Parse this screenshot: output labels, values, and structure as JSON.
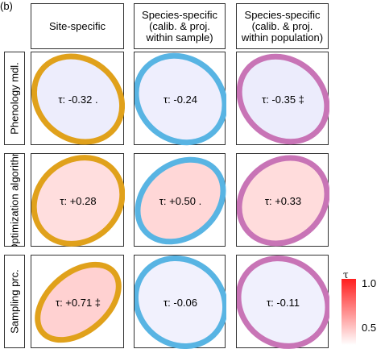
{
  "figure": {
    "corner_label": "(b)",
    "columns": [
      "Site-specific",
      "Species-specific\n(calib. & proj.\nwithin sample)",
      "Species-specific\n(calib. & proj.\nwithin population)"
    ],
    "rows": [
      "Phenology mdl.",
      "Optimization algorithm",
      "Sampling prc."
    ]
  },
  "colors": {
    "site_specific": "#e0a11b",
    "within_sample": "#58b4e3",
    "within_population": "#c874b6",
    "negative_fill": "#e2e2fb",
    "positive_fill": "#ffc8c8",
    "legend_high": "#ff1f1f",
    "legend_low": "#ffffff"
  },
  "chart_data": {
    "type": "heatmap",
    "title": "",
    "legend": {
      "title": "τ",
      "ticks": [
        "1.0",
        "0.5"
      ],
      "position": "right"
    },
    "cells": [
      {
        "row": 0,
        "col": 0,
        "tau": -0.32,
        "label": "τ: -0.32 .",
        "color": "site_specific",
        "fill": "negative_fill"
      },
      {
        "row": 0,
        "col": 1,
        "tau": -0.24,
        "label": "τ: -0.24",
        "color": "within_sample",
        "fill": "negative_fill"
      },
      {
        "row": 0,
        "col": 2,
        "tau": -0.35,
        "label": "τ: -0.35 ‡",
        "color": "within_population",
        "fill": "negative_fill"
      },
      {
        "row": 1,
        "col": 0,
        "tau": 0.28,
        "label": "τ: +0.28",
        "color": "site_specific",
        "fill": "positive_fill"
      },
      {
        "row": 1,
        "col": 1,
        "tau": 0.5,
        "label": "τ: +0.50 .",
        "color": "within_sample",
        "fill": "positive_fill"
      },
      {
        "row": 1,
        "col": 2,
        "tau": 0.33,
        "label": "τ: +0.33",
        "color": "within_population",
        "fill": "positive_fill"
      },
      {
        "row": 2,
        "col": 0,
        "tau": 0.71,
        "label": "τ: +0.71 ‡",
        "color": "site_specific",
        "fill": "positive_fill"
      },
      {
        "row": 2,
        "col": 1,
        "tau": -0.06,
        "label": "τ: -0.06",
        "color": "within_sample",
        "fill": "negative_fill"
      },
      {
        "row": 2,
        "col": 2,
        "tau": -0.11,
        "label": "τ: -0.11",
        "color": "within_population",
        "fill": "negative_fill"
      }
    ]
  }
}
